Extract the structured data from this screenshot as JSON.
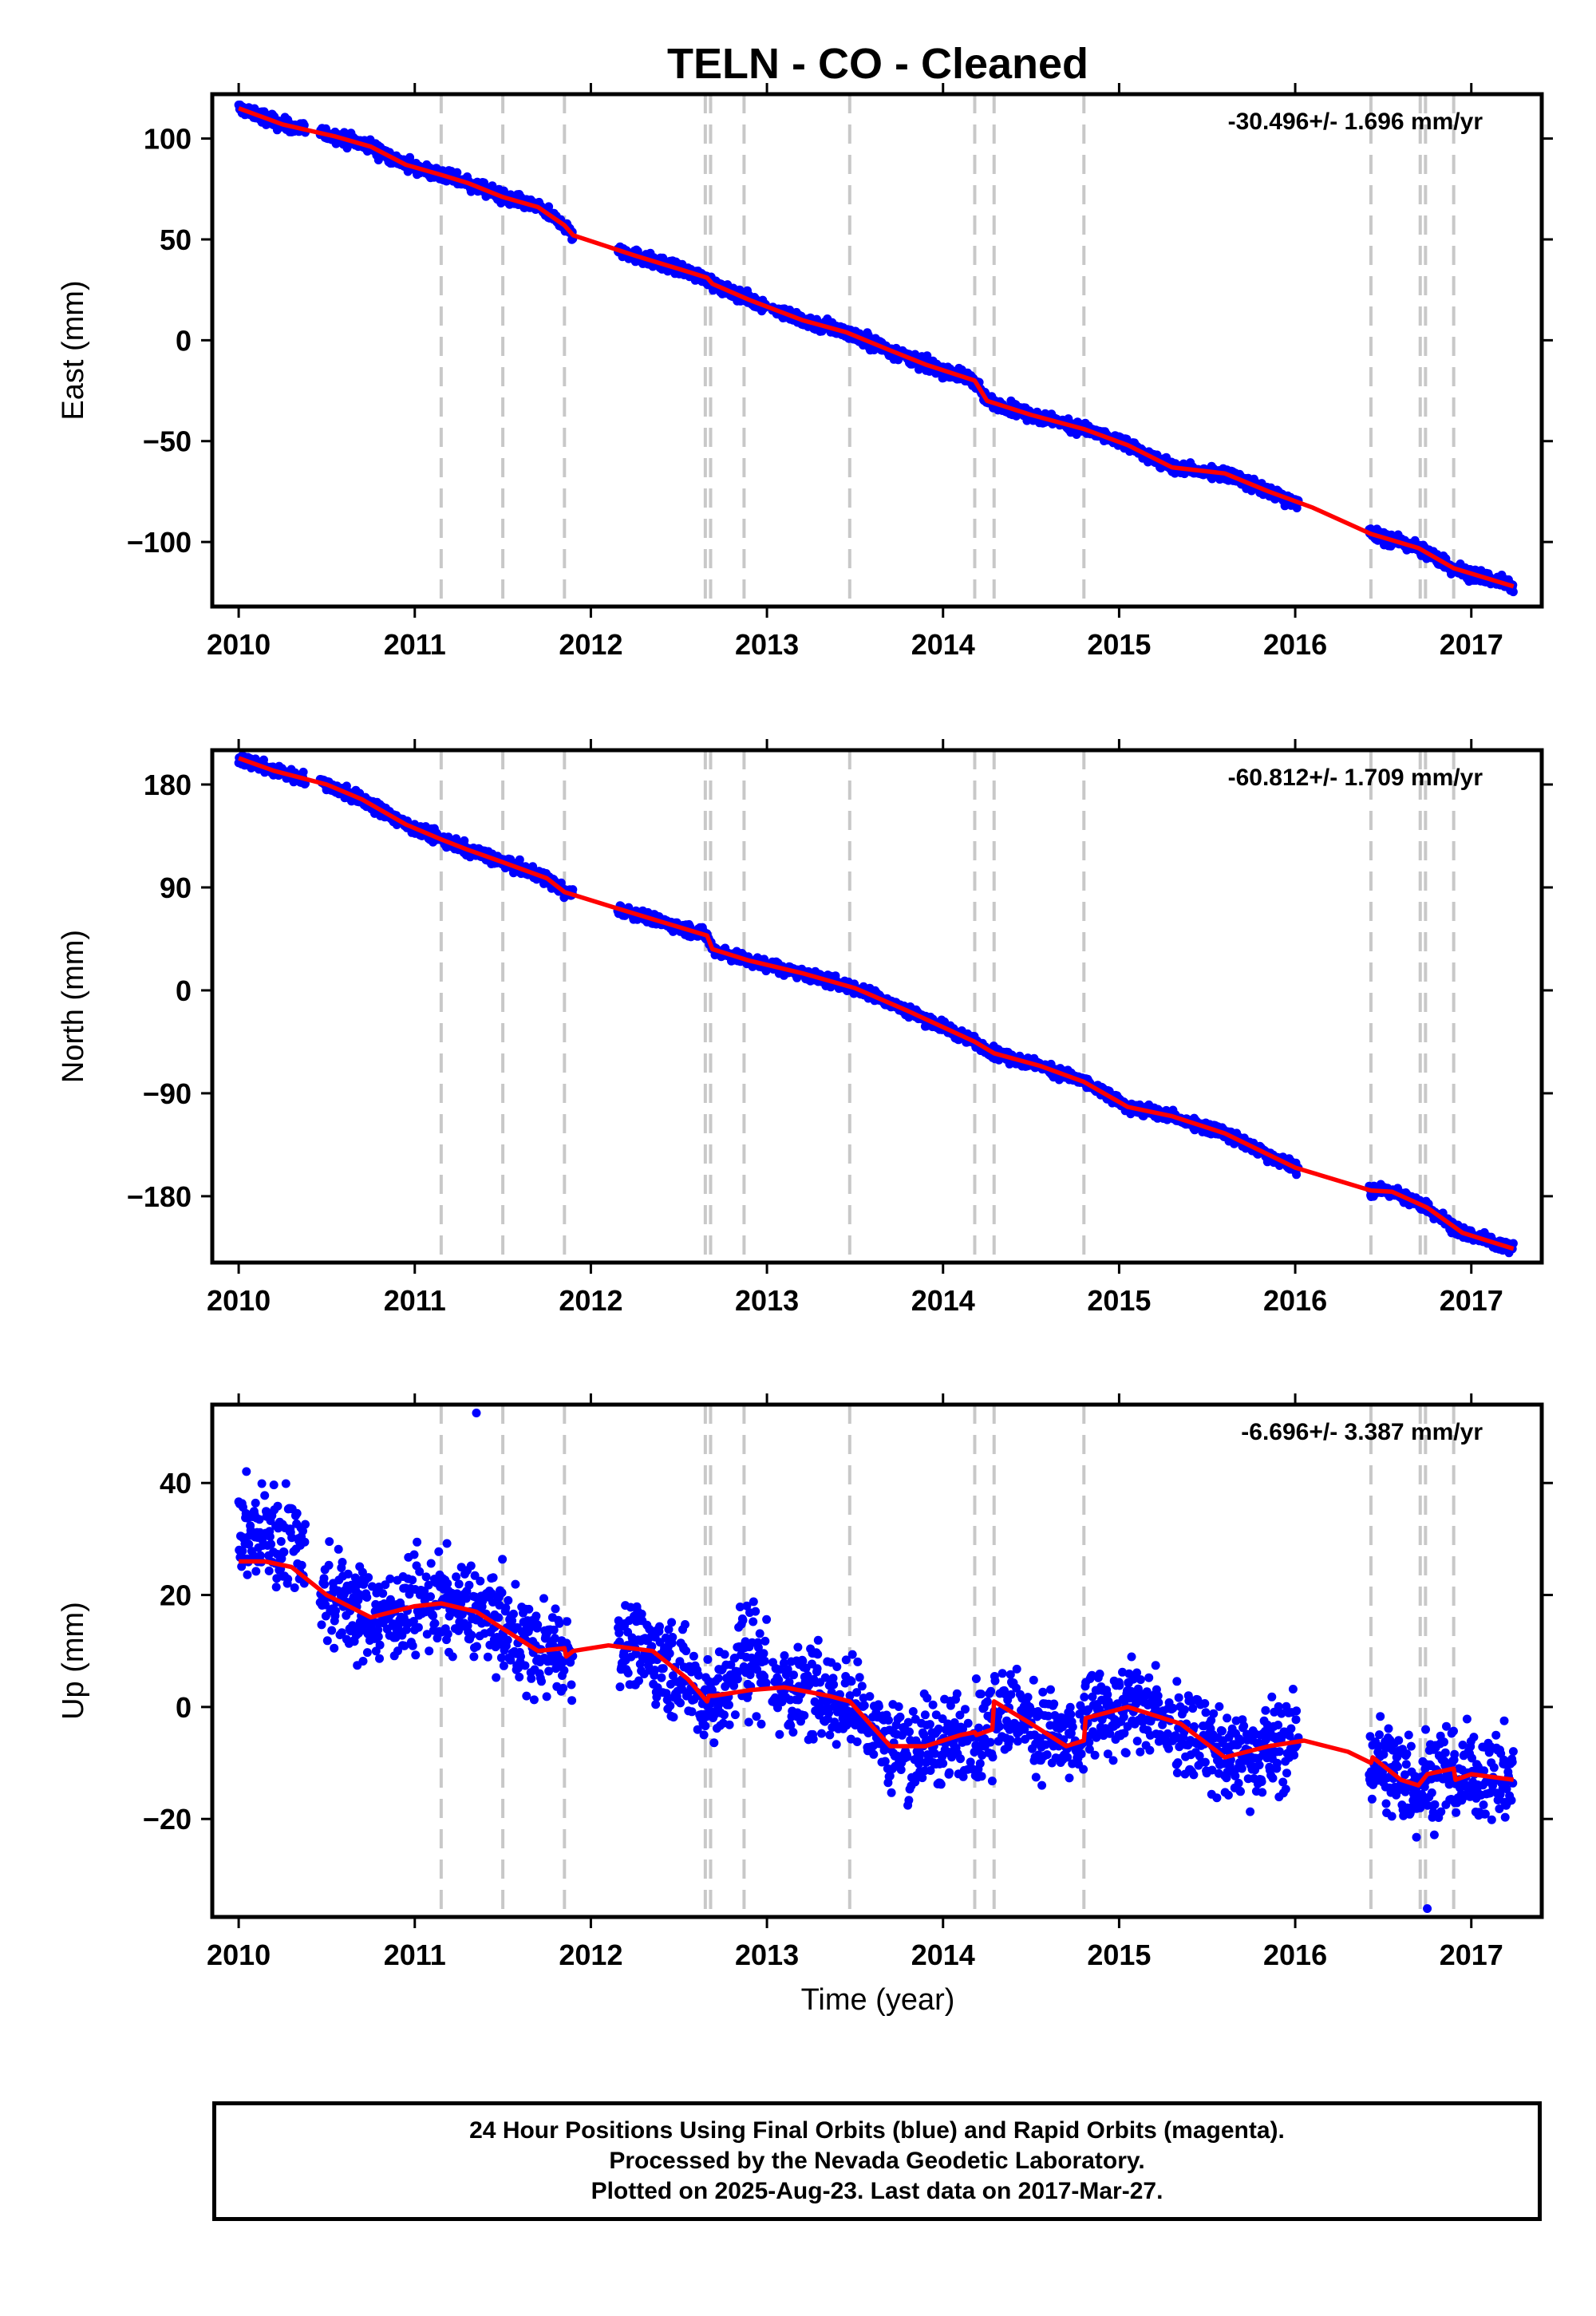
{
  "title": "TELN  - CO - Cleaned",
  "xlabel": "Time (year)",
  "x_ticks": [
    2010,
    2011,
    2012,
    2013,
    2014,
    2015,
    2016,
    2017
  ],
  "x_tick_labels": [
    "2010",
    "2011",
    "2012",
    "2013",
    "2014",
    "2015",
    "2016",
    "2017"
  ],
  "footer": {
    "line1": "24 Hour Positions Using Final Orbits (blue) and Rapid Orbits (magenta).",
    "line2": "Processed by the Nevada Geodetic Laboratory.",
    "line3": "Plotted on 2025-Aug-23. Last data on 2017-Mar-27."
  },
  "colors": {
    "final_orbits": "#0000ff",
    "model": "#ff0000",
    "event_lines": "#c8c8c8",
    "frame": "#000000"
  },
  "chart_data": [
    {
      "type": "scatter",
      "panel": "east",
      "ylabel": "East (mm)",
      "rate": "-30.496+/- 1.696 mm/yr",
      "xlim": [
        2009.85,
        2017.4
      ],
      "ylim": [
        -132,
        122
      ],
      "y_ticks": [
        100,
        50,
        0,
        -50,
        -100
      ],
      "y_tick_labels": [
        "100",
        "50",
        "0",
        "−50",
        "−100"
      ],
      "event_lines": [
        2011.15,
        2011.5,
        2011.85,
        2012.65,
        2012.68,
        2012.87,
        2013.47,
        2014.18,
        2014.29,
        2014.8,
        2016.43,
        2016.71,
        2016.74,
        2016.9
      ],
      "gaps": [
        [
          2010.38,
          2010.46
        ],
        [
          2011.9,
          2012.15
        ],
        [
          2013.0,
          2013.03
        ],
        [
          2016.02,
          2016.42
        ]
      ],
      "model": {
        "name": "model",
        "points": [
          [
            2010.0,
            115
          ],
          [
            2010.25,
            107
          ],
          [
            2010.55,
            101
          ],
          [
            2010.75,
            96
          ],
          [
            2010.95,
            87
          ],
          [
            2011.15,
            82
          ],
          [
            2011.3,
            78
          ],
          [
            2011.5,
            71
          ],
          [
            2011.7,
            66
          ],
          [
            2011.85,
            57
          ],
          [
            2011.9,
            52
          ],
          [
            2012.25,
            42
          ],
          [
            2012.55,
            34
          ],
          [
            2012.66,
            31
          ],
          [
            2012.69,
            28
          ],
          [
            2012.9,
            20
          ],
          [
            2013.2,
            10
          ],
          [
            2013.45,
            4
          ],
          [
            2013.7,
            -5
          ],
          [
            2013.9,
            -12
          ],
          [
            2014.18,
            -20
          ],
          [
            2014.25,
            -30
          ],
          [
            2014.5,
            -37
          ],
          [
            2014.8,
            -44
          ],
          [
            2015.05,
            -52
          ],
          [
            2015.3,
            -63
          ],
          [
            2015.6,
            -66
          ],
          [
            2015.85,
            -75
          ],
          [
            2016.1,
            -83
          ],
          [
            2016.43,
            -96
          ],
          [
            2016.7,
            -103
          ],
          [
            2016.9,
            -113
          ],
          [
            2017.24,
            -122
          ]
        ]
      }
    },
    {
      "type": "scatter",
      "panel": "north",
      "ylabel": "North (mm)",
      "rate": "-60.812+/- 1.709 mm/yr",
      "xlim": [
        2009.85,
        2017.4
      ],
      "ylim": [
        -238,
        210
      ],
      "y_ticks": [
        180,
        90,
        0,
        -90,
        -180
      ],
      "y_tick_labels": [
        "180",
        "90",
        "0",
        "−90",
        "−180"
      ],
      "event_lines": [
        2011.15,
        2011.5,
        2011.85,
        2012.65,
        2012.68,
        2012.87,
        2013.47,
        2014.18,
        2014.29,
        2014.8,
        2016.43,
        2016.71,
        2016.74,
        2016.9
      ],
      "gaps": [
        [
          2010.38,
          2010.46
        ],
        [
          2011.9,
          2012.15
        ],
        [
          2013.0,
          2013.03
        ],
        [
          2016.02,
          2016.42
        ]
      ],
      "model": {
        "name": "model",
        "points": [
          [
            2010.0,
            203
          ],
          [
            2010.2,
            192
          ],
          [
            2010.5,
            180
          ],
          [
            2010.7,
            167
          ],
          [
            2010.95,
            145
          ],
          [
            2011.15,
            132
          ],
          [
            2011.3,
            123
          ],
          [
            2011.5,
            112
          ],
          [
            2011.75,
            98
          ],
          [
            2011.85,
            86
          ],
          [
            2012.1,
            74
          ],
          [
            2012.4,
            60
          ],
          [
            2012.66,
            48
          ],
          [
            2012.69,
            36
          ],
          [
            2012.9,
            26
          ],
          [
            2013.2,
            15
          ],
          [
            2013.5,
            2
          ],
          [
            2013.8,
            -18
          ],
          [
            2014.18,
            -45
          ],
          [
            2014.29,
            -55
          ],
          [
            2014.55,
            -66
          ],
          [
            2014.8,
            -80
          ],
          [
            2015.05,
            -102
          ],
          [
            2015.3,
            -110
          ],
          [
            2015.6,
            -125
          ],
          [
            2016.0,
            -155
          ],
          [
            2016.43,
            -175
          ],
          [
            2016.55,
            -176
          ],
          [
            2016.75,
            -190
          ],
          [
            2016.95,
            -212
          ],
          [
            2017.24,
            -226
          ]
        ]
      }
    },
    {
      "type": "scatter",
      "panel": "up",
      "ylabel": "Up (mm)",
      "rate": "-6.696+/- 3.387 mm/yr",
      "xlim": [
        2009.85,
        2017.4
      ],
      "ylim": [
        -37.5,
        54
      ],
      "y_ticks": [
        40,
        20,
        0,
        -20
      ],
      "y_tick_labels": [
        "40",
        "20",
        "0",
        "−20"
      ],
      "event_lines": [
        2011.15,
        2011.5,
        2011.85,
        2012.65,
        2012.68,
        2012.87,
        2013.47,
        2014.18,
        2014.29,
        2014.8,
        2016.43,
        2016.71,
        2016.74,
        2016.9
      ],
      "gaps": [
        [
          2010.38,
          2010.46
        ],
        [
          2011.9,
          2012.15
        ],
        [
          2013.0,
          2013.03
        ],
        [
          2016.02,
          2016.42
        ]
      ],
      "outliers": [
        [
          2011.35,
          52.5
        ],
        [
          2016.75,
          -36
        ]
      ],
      "model": {
        "name": "model",
        "points": [
          [
            2010.0,
            26
          ],
          [
            2010.15,
            26
          ],
          [
            2010.3,
            25
          ],
          [
            2010.5,
            20
          ],
          [
            2010.75,
            16
          ],
          [
            2011.0,
            18
          ],
          [
            2011.15,
            18.5
          ],
          [
            2011.35,
            17
          ],
          [
            2011.5,
            14
          ],
          [
            2011.7,
            10
          ],
          [
            2011.85,
            10.5
          ],
          [
            2011.86,
            9
          ],
          [
            2011.9,
            10
          ],
          [
            2012.1,
            11
          ],
          [
            2012.35,
            10
          ],
          [
            2012.55,
            5
          ],
          [
            2012.66,
            1
          ],
          [
            2012.67,
            2
          ],
          [
            2012.7,
            2
          ],
          [
            2012.9,
            3
          ],
          [
            2013.1,
            3.5
          ],
          [
            2013.35,
            2
          ],
          [
            2013.47,
            1
          ],
          [
            2013.7,
            -7
          ],
          [
            2013.9,
            -7
          ],
          [
            2014.1,
            -5
          ],
          [
            2014.18,
            -4.5
          ],
          [
            2014.19,
            -5
          ],
          [
            2014.28,
            -4
          ],
          [
            2014.29,
            1
          ],
          [
            2014.5,
            -3
          ],
          [
            2014.7,
            -7
          ],
          [
            2014.8,
            -6
          ],
          [
            2014.81,
            -2
          ],
          [
            2015.05,
            0
          ],
          [
            2015.35,
            -3
          ],
          [
            2015.6,
            -9
          ],
          [
            2015.85,
            -7
          ],
          [
            2016.05,
            -6
          ],
          [
            2016.3,
            -8
          ],
          [
            2016.43,
            -10
          ],
          [
            2016.44,
            -9
          ],
          [
            2016.6,
            -13
          ],
          [
            2016.7,
            -14
          ],
          [
            2016.75,
            -12
          ],
          [
            2016.9,
            -11
          ],
          [
            2016.91,
            -13
          ],
          [
            2017.0,
            -12
          ],
          [
            2017.24,
            -13
          ]
        ]
      }
    }
  ]
}
